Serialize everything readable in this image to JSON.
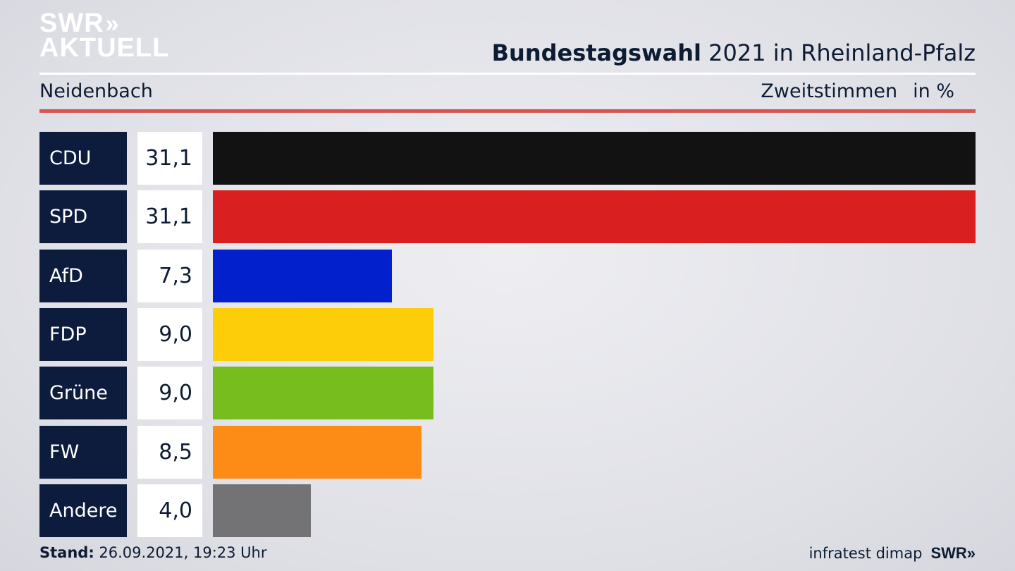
{
  "brand": {
    "logo_line1": "SWR",
    "logo_arrows": "»",
    "logo_line2": "AKTUELL"
  },
  "header": {
    "title_bold": "Bundestagswahl",
    "title_rest": " 2021 in Rheinland-Pfalz",
    "region": "Neidenbach",
    "metric": "Zweitstimmen",
    "unit": "in %"
  },
  "chart_data": {
    "type": "bar",
    "orientation": "horizontal",
    "categories": [
      "CDU",
      "SPD",
      "AfD",
      "FDP",
      "Grüne",
      "FW",
      "Andere"
    ],
    "values": [
      31.1,
      31.1,
      7.3,
      9.0,
      9.0,
      8.5,
      4.0
    ],
    "value_labels": [
      "31,1",
      "31,1",
      "7,3",
      "9,0",
      "9,0",
      "8,5",
      "4,0"
    ],
    "colors": [
      "#121212",
      "#d91f1f",
      "#0220cc",
      "#fecd09",
      "#78bd1e",
      "#fd8c17",
      "#737376"
    ],
    "xlim": [
      0,
      31.1
    ]
  },
  "footer": {
    "stand_label": "Stand:",
    "stand_value": " 26.09.2021, 19:23 Uhr",
    "source": "infratest dimap",
    "swr": "SWR»"
  }
}
